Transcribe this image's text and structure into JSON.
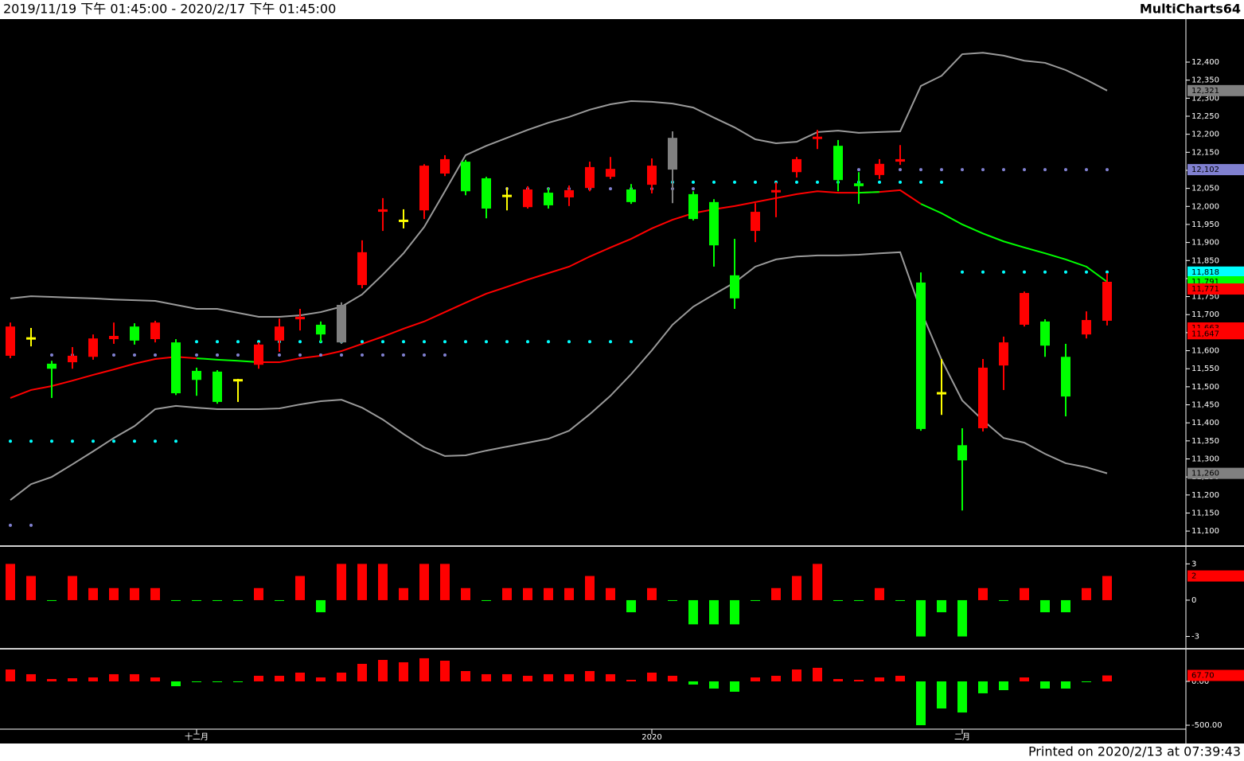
{
  "header": {
    "range": "2019/11/19 下午 01:45:00 - 2020/2/17 下午 01:45:00",
    "app": "MultiCharts64"
  },
  "footer": "Printed on 2020/2/13 at 07:39:43",
  "chart_data": [
    {
      "type": "candlestick",
      "categories": [
        null,
        null,
        null,
        null,
        null,
        null,
        null,
        null,
        null,
        "十二月",
        null,
        null,
        null,
        null,
        null,
        null,
        null,
        null,
        null,
        null,
        null,
        null,
        null,
        null,
        null,
        null,
        null,
        null,
        null,
        null,
        null,
        "2020",
        null,
        null,
        null,
        null,
        null,
        null,
        null,
        null,
        null,
        null,
        null,
        null,
        null,
        null,
        "二月",
        null,
        null,
        null,
        null,
        null,
        null,
        null
      ],
      "open": [
        11586,
        11634,
        11564,
        11568,
        11583,
        11632,
        11667,
        11632,
        11623,
        11544,
        11542,
        11518,
        11561,
        11628,
        11687,
        11672,
        11727,
        11782,
        11985,
        11960,
        11989,
        12091,
        12124,
        12078,
        12029,
        11998,
        12038,
        12025,
        12051,
        12082,
        12047,
        12060,
        12190,
        12034,
        12012,
        11809,
        11932,
        12036,
        12095,
        12184,
        12168,
        12064,
        12087,
        12124,
        11789,
        11482,
        11338,
        11385,
        11559,
        11672,
        11681,
        11583,
        11645,
        11683
      ],
      "high": [
        11678,
        11663,
        11572,
        11610,
        11645,
        11678,
        11676,
        11683,
        11632,
        11553,
        11546,
        11522,
        11623,
        11689,
        11716,
        11681,
        11734,
        11906,
        12023,
        11992,
        12117,
        12142,
        12129,
        12082,
        12053,
        12056,
        12051,
        12058,
        12124,
        12137,
        12062,
        12133,
        12208,
        12042,
        12020,
        11910,
        12009,
        12067,
        12137,
        12212,
        12184,
        12095,
        12131,
        12170,
        11817,
        11577,
        11385,
        11577,
        11639,
        11764,
        11687,
        11619,
        11709,
        11815
      ],
      "low": [
        11579,
        11612,
        11469,
        11550,
        11575,
        11619,
        11617,
        11623,
        11477,
        11475,
        11453,
        11458,
        11550,
        11597,
        11656,
        11623,
        11619,
        11773,
        11932,
        11939,
        11965,
        12084,
        12031,
        11967,
        11989,
        11994,
        11994,
        12001,
        12042,
        12076,
        12007,
        12036,
        12009,
        11961,
        11833,
        11716,
        11901,
        11970,
        12080,
        12159,
        12042,
        12007,
        12076,
        12115,
        11378,
        11422,
        11157,
        11376,
        11491,
        11667,
        11583,
        11418,
        11634,
        11670
      ],
      "close": [
        11667,
        11634,
        11550,
        11586,
        11634,
        11641,
        11628,
        11678,
        11482,
        11519,
        11458,
        11518,
        11617,
        11667,
        11694,
        11645,
        11623,
        11873,
        11992,
        11960,
        12113,
        12131,
        12042,
        11994,
        12029,
        12047,
        12003,
        12045,
        12109,
        12104,
        12012,
        12113,
        12102,
        11965,
        11892,
        11745,
        11985,
        12042,
        12131,
        12190,
        12073,
        12056,
        12118,
        12131,
        11383,
        11482,
        11296,
        11553,
        11623,
        11760,
        11614,
        11473,
        11685,
        11791
      ],
      "colors": [
        "#ff0000",
        "#ffff00",
        "#00ff00",
        "#ff0000",
        "#ff0000",
        "#ff0000",
        "#00ff00",
        "#ff0000",
        "#00ff00",
        "#00ff00",
        "#00ff00",
        "#ffff00",
        "#ff0000",
        "#ff0000",
        "#ff0000",
        "#00ff00",
        "#808080",
        "#ff0000",
        "#ff0000",
        "#ffff00",
        "#ff0000",
        "#ff0000",
        "#00ff00",
        "#00ff00",
        "#ffff00",
        "#ff0000",
        "#00ff00",
        "#ff0000",
        "#ff0000",
        "#ff0000",
        "#00ff00",
        "#ff0000",
        "#808080",
        "#00ff00",
        "#00ff00",
        "#00ff00",
        "#ff0000",
        "#ff0000",
        "#ff0000",
        "#ff0000",
        "#00ff00",
        "#00ff00",
        "#ff0000",
        "#ff0000",
        "#00ff00",
        "#ffff00",
        "#00ff00",
        "#ff0000",
        "#ff0000",
        "#ff0000",
        "#00ff00",
        "#00ff00",
        "#ff0000",
        "#ff0000"
      ],
      "lines": [
        {
          "color": "#9a9a9a",
          "values": [
            11745,
            11751,
            11749,
            11747,
            11745,
            11742,
            11740,
            11738,
            11727,
            11716,
            11716,
            11705,
            11694,
            11694,
            11698,
            11707,
            11722,
            11756,
            11811,
            11870,
            11943,
            12042,
            12142,
            12168,
            12190,
            12212,
            12232,
            12248,
            12268,
            12283,
            12292,
            12290,
            12285,
            12274,
            12246,
            12219,
            12186,
            12175,
            12179,
            12206,
            12210,
            12204,
            12206,
            12208,
            12334,
            12362,
            12422,
            12426,
            12418,
            12404,
            12398,
            12378,
            12351,
            12321
          ]
        },
        {
          "color": "#9a9a9a",
          "values": [
            11186,
            11230,
            11250,
            11285,
            11321,
            11358,
            11391,
            11438,
            11447,
            11442,
            11438,
            11438,
            11438,
            11440,
            11451,
            11460,
            11464,
            11442,
            11409,
            11369,
            11332,
            11308,
            11310,
            11323,
            11334,
            11345,
            11356,
            11378,
            11424,
            11475,
            11535,
            11601,
            11672,
            11722,
            11756,
            11789,
            11833,
            11853,
            11861,
            11864,
            11864,
            11866,
            11870,
            11873,
            11711,
            11575,
            11462,
            11407,
            11358,
            11345,
            11314,
            11288,
            11277,
            11260
          ]
        },
        {
          "color": "#ff0000",
          "values": [
            11469,
            11491,
            11502,
            11517,
            11533,
            11548,
            11564,
            11577,
            11583,
            11579,
            null,
            null,
            11568,
            11568,
            11579,
            11586,
            11599,
            11619,
            11639,
            11661,
            11681,
            11707,
            11733,
            11758,
            11777,
            11797,
            11815,
            11833,
            11861,
            11886,
            11910,
            11939,
            11963,
            11981,
            11992,
            12001,
            12012,
            12023,
            12034,
            12042,
            12038,
            12038,
            12040,
            12045,
            12007,
            null,
            null,
            null,
            null,
            null,
            null,
            null,
            null,
            null
          ]
        },
        {
          "color": "#00ff00",
          "values": [
            null,
            null,
            null,
            null,
            null,
            null,
            null,
            null,
            null,
            11579,
            11575,
            11572,
            11568,
            null,
            null,
            null,
            null,
            null,
            null,
            null,
            null,
            null,
            null,
            null,
            null,
            null,
            null,
            null,
            null,
            null,
            null,
            null,
            null,
            null,
            null,
            null,
            null,
            null,
            null,
            null,
            null,
            12038,
            12040,
            null,
            12007,
            11981,
            11950,
            11925,
            11903,
            11886,
            11870,
            11853,
            11833,
            11791
          ]
        }
      ],
      "dots": [
        {
          "color": "#00ffff",
          "values": [
            11349,
            11349,
            11349,
            11349,
            11349,
            11349,
            11349,
            11349,
            11349,
            11625,
            11625,
            11625,
            11625,
            11625,
            11625,
            11625,
            11625,
            11625,
            11625,
            11625,
            11625,
            11625,
            11625,
            11625,
            11625,
            11625,
            11625,
            11625,
            11625,
            11625,
            11625,
            12067,
            12067,
            12067,
            12067,
            12067,
            12067,
            12067,
            12067,
            12067,
            12067,
            12067,
            12067,
            12067,
            12067,
            12067,
            11818,
            11818,
            11818,
            11818,
            11818,
            11818,
            11818,
            11818
          ]
        },
        {
          "color": "#8080d0",
          "values": [
            11116,
            11116,
            11588,
            11588,
            11588,
            11588,
            11588,
            11588,
            11588,
            11588,
            11588,
            11588,
            11588,
            11588,
            11588,
            11588,
            11588,
            11588,
            11588,
            11588,
            11588,
            11588,
            null,
            null,
            12049,
            12049,
            12049,
            12049,
            12049,
            12049,
            12049,
            12049,
            12049,
            12049,
            null,
            null,
            null,
            null,
            null,
            null,
            null,
            12102,
            12102,
            12102,
            12102,
            12102,
            12102,
            12102,
            12102,
            12102,
            12102,
            12102,
            12102,
            12102
          ]
        }
      ],
      "ylim": [
        11065,
        12517
      ],
      "yticks": [
        {
          "value": 11100,
          "label": "11,100"
        },
        {
          "value": 11150,
          "label": "11,150"
        },
        {
          "value": 11200,
          "label": "11,200"
        },
        {
          "value": 11250,
          "label": "11,250"
        },
        {
          "value": 11300,
          "label": "11,300"
        },
        {
          "value": 11350,
          "label": "11,350"
        },
        {
          "value": 11400,
          "label": "11,400"
        },
        {
          "value": 11450,
          "label": "11,450"
        },
        {
          "value": 11500,
          "label": "11,500"
        },
        {
          "value": 11550,
          "label": "11,550"
        },
        {
          "value": 11600,
          "label": "11,600"
        },
        {
          "value": 11650,
          "label": "11,650"
        },
        {
          "value": 11700,
          "label": "11,700"
        },
        {
          "value": 11750,
          "label": "11,750"
        },
        {
          "value": 11800,
          "label": "11,800"
        },
        {
          "value": 11850,
          "label": "11,850"
        },
        {
          "value": 11900,
          "label": "11,900"
        },
        {
          "value": 11950,
          "label": "11,950"
        },
        {
          "value": 12000,
          "label": "12,000"
        },
        {
          "value": 12050,
          "label": "12,050"
        },
        {
          "value": 12100,
          "label": "12,100"
        },
        {
          "value": 12150,
          "label": "12,150"
        },
        {
          "value": 12200,
          "label": "12,200"
        },
        {
          "value": 12250,
          "label": "12,250"
        },
        {
          "value": 12300,
          "label": "12,300"
        },
        {
          "value": 12350,
          "label": "12,350"
        },
        {
          "value": 12400,
          "label": "12,400"
        }
      ],
      "markers": [
        {
          "value": 12321,
          "label": "12,321",
          "color": "#808080"
        },
        {
          "value": 12102,
          "label": "12,102",
          "color": "#8080d0"
        },
        {
          "value": 11818,
          "label": "11,818",
          "color": "#00ffff"
        },
        {
          "value": 11791,
          "label": "11,791",
          "color": "#00ff00"
        },
        {
          "value": 11771,
          "label": "11,771",
          "color": "#ff0000"
        },
        {
          "value": 11663,
          "label": "11,663",
          "color": "#ff0000"
        },
        {
          "value": 11647,
          "label": "11,647",
          "color": "#ff0000"
        },
        {
          "value": 11260,
          "label": "11,260",
          "color": "#808080"
        }
      ]
    },
    {
      "type": "bar",
      "up_color": "#ff0000",
      "down_color": "#00ff00",
      "values": [
        3,
        2,
        0,
        2,
        1,
        1,
        1,
        1,
        0,
        0,
        0,
        0,
        1,
        0,
        2,
        -1,
        3,
        3,
        3,
        1,
        3,
        3,
        1,
        0,
        1,
        1,
        1,
        1,
        2,
        1,
        -1,
        1,
        0,
        -2,
        -2,
        -2,
        0,
        1,
        2,
        3,
        0,
        0,
        1,
        0,
        -3,
        -1,
        -3,
        1,
        0,
        1,
        -1,
        -1,
        1,
        2
      ],
      "ylim": [
        -3.82,
        4.34
      ],
      "yticks": [
        3,
        0,
        -3
      ],
      "markers": [
        {
          "value": 2,
          "label": "2",
          "color": "#ff0000"
        }
      ]
    },
    {
      "type": "bar",
      "up_color": "#ff0000",
      "down_color": "#00ff00",
      "values": [
        136,
        82,
        27,
        36,
        45,
        82,
        82,
        45,
        -55,
        -9,
        0,
        0,
        64,
        64,
        100,
        45,
        100,
        200,
        245,
        218,
        264,
        236,
        118,
        82,
        82,
        64,
        82,
        82,
        118,
        82,
        18,
        100,
        64,
        -36,
        -82,
        -118,
        45,
        64,
        136,
        155,
        27,
        18,
        45,
        64,
        -500,
        -309,
        -355,
        -136,
        -100,
        45,
        -82,
        -82,
        0,
        67.7
      ],
      "ylim": [
        -536,
        345
      ],
      "yticks": [
        {
          "value": 0,
          "label": "0.00"
        },
        {
          "value": -500,
          "label": "-500.00"
        }
      ],
      "markers": [
        {
          "value": 67.7,
          "label": "67.70",
          "color": "#ff0000"
        }
      ]
    }
  ]
}
